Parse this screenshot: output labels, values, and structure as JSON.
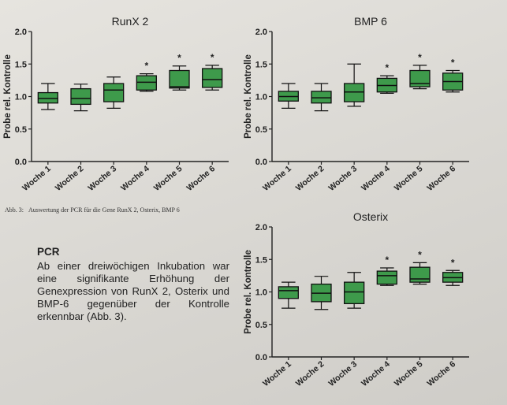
{
  "caption": {
    "label": "Abb. 3:",
    "text": "Auswertung der PCR für die Gene RunX 2, Osterix, BMP 6"
  },
  "pcr": {
    "heading": "PCR",
    "text": "Ab einer dreiwöchigen Inkubation war eine signifikante Erhöhung der Genexpression von RunX 2, Osterix und BMP-6 gegenüber der Kontrolle erkennbar (Abb. 3)."
  },
  "chart_data": [
    {
      "type": "box",
      "title": "RunX 2",
      "ylabel": "Probe rel. Kontrolle",
      "ylim": [
        0.0,
        2.0
      ],
      "yticks": [
        "0.0",
        "0.5",
        "1.0",
        "1.5",
        "2.0"
      ],
      "categories": [
        "Woche 1",
        "Woche 2",
        "Woche 3",
        "Woche 4",
        "Woche 5",
        "Woche 6"
      ],
      "boxes": [
        {
          "min": 0.8,
          "q1": 0.9,
          "median": 0.97,
          "q3": 1.06,
          "max": 1.2,
          "sig": ""
        },
        {
          "min": 0.78,
          "q1": 0.88,
          "median": 0.97,
          "q3": 1.12,
          "max": 1.19,
          "sig": ""
        },
        {
          "min": 0.82,
          "q1": 0.92,
          "median": 1.1,
          "q3": 1.2,
          "max": 1.3,
          "sig": ""
        },
        {
          "min": 1.08,
          "q1": 1.1,
          "median": 1.22,
          "q3": 1.32,
          "max": 1.35,
          "sig": "*"
        },
        {
          "min": 1.1,
          "q1": 1.13,
          "median": 1.15,
          "q3": 1.4,
          "max": 1.47,
          "sig": "*"
        },
        {
          "min": 1.1,
          "q1": 1.14,
          "median": 1.26,
          "q3": 1.43,
          "max": 1.48,
          "sig": "*"
        }
      ],
      "box_color": "#3e9a4b"
    },
    {
      "type": "box",
      "title": "BMP 6",
      "ylabel": "Probe rel. Kontrolle",
      "ylim": [
        0.0,
        2.0
      ],
      "yticks": [
        "0.0",
        "0.5",
        "1.0",
        "1.5",
        "2.0"
      ],
      "categories": [
        "Woche 1",
        "Woche 2",
        "Woche 3",
        "Woche 4",
        "Woche 5",
        "Woche 6"
      ],
      "boxes": [
        {
          "min": 0.82,
          "q1": 0.93,
          "median": 1.0,
          "q3": 1.08,
          "max": 1.2,
          "sig": ""
        },
        {
          "min": 0.78,
          "q1": 0.9,
          "median": 0.98,
          "q3": 1.08,
          "max": 1.2,
          "sig": ""
        },
        {
          "min": 0.85,
          "q1": 0.92,
          "median": 1.07,
          "q3": 1.2,
          "max": 1.5,
          "sig": ""
        },
        {
          "min": 1.05,
          "q1": 1.07,
          "median": 1.17,
          "q3": 1.28,
          "max": 1.32,
          "sig": "*"
        },
        {
          "min": 1.12,
          "q1": 1.15,
          "median": 1.2,
          "q3": 1.4,
          "max": 1.48,
          "sig": "*"
        },
        {
          "min": 1.07,
          "q1": 1.1,
          "median": 1.23,
          "q3": 1.36,
          "max": 1.4,
          "sig": "*"
        }
      ],
      "box_color": "#3e9a4b"
    },
    {
      "type": "box",
      "title": "Osterix",
      "ylabel": "Probe rel. Kontrolle",
      "ylim": [
        0.0,
        2.0
      ],
      "yticks": [
        "0.0",
        "0.5",
        "1.0",
        "1.5",
        "2.0"
      ],
      "categories": [
        "Woche 1",
        "Woche 2",
        "Woche 3",
        "Woche 4",
        "Woche 5",
        "Woche 6"
      ],
      "boxes": [
        {
          "min": 0.75,
          "q1": 0.9,
          "median": 1.02,
          "q3": 1.08,
          "max": 1.15,
          "sig": ""
        },
        {
          "min": 0.73,
          "q1": 0.85,
          "median": 0.98,
          "q3": 1.12,
          "max": 1.24,
          "sig": ""
        },
        {
          "min": 0.75,
          "q1": 0.82,
          "median": 1.0,
          "q3": 1.15,
          "max": 1.3,
          "sig": ""
        },
        {
          "min": 1.1,
          "q1": 1.12,
          "median": 1.25,
          "q3": 1.32,
          "max": 1.37,
          "sig": "*"
        },
        {
          "min": 1.12,
          "q1": 1.15,
          "median": 1.2,
          "q3": 1.38,
          "max": 1.45,
          "sig": "*"
        },
        {
          "min": 1.1,
          "q1": 1.15,
          "median": 1.22,
          "q3": 1.3,
          "max": 1.33,
          "sig": "*"
        }
      ],
      "box_color": "#3e9a4b"
    }
  ]
}
